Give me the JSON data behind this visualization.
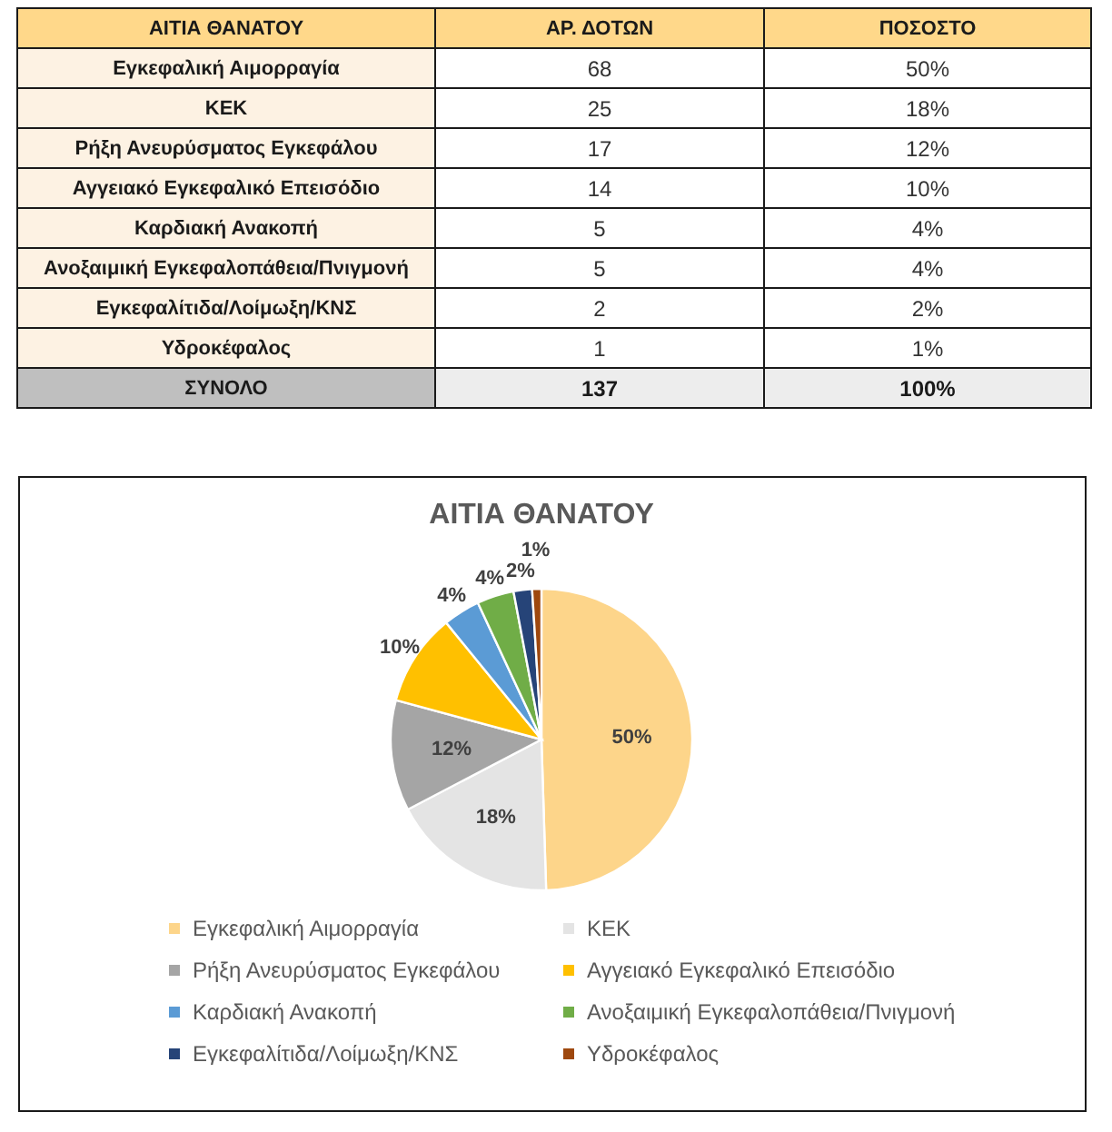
{
  "chart_data": [
    {
      "type": "other",
      "categories": [
        "Εγκεφαλική Αιμορραγία",
        "ΚΕΚ",
        "Ρήξη Ανευρύσματος Εγκεφάλου",
        "Αγγειακό Εγκεφαλικό Επεισόδιο",
        "Καρδιακή Ανακοπή",
        "Ανοξαιμική Εγκεφαλοπάθεια/Πνιγμονή",
        "Εγκεφαλίτιδα/Λοίμωξη/ΚΝΣ",
        "Υδροκέφαλος"
      ],
      "series": [
        {
          "name": "ΑΡ. ΔΟΤΩΝ",
          "values": [
            68,
            25,
            17,
            14,
            5,
            5,
            2,
            1
          ]
        },
        {
          "name": "ΠΟΣΟΣΤΟ",
          "values": [
            50,
            18,
            12,
            10,
            4,
            4,
            2,
            1
          ],
          "value_labels": [
            "50%",
            "18%",
            "12%",
            "10%",
            "4%",
            "4%",
            "2%",
            "1%"
          ]
        }
      ],
      "data_labels": true,
      "totals": [
        "137",
        "100%"
      ],
      "annotations": [
        "ΑΙΤΙΑ ΘΑΝΑΤΟΥ",
        "ΣΥΝΟΛΟ"
      ]
    },
    {
      "type": "pie",
      "title": "ΑΙΤΙΑ ΘΑΝΑΤΟΥ",
      "categories": [
        "Εγκεφαλική Αιμορραγία",
        "ΚΕΚ",
        "Ρήξη Ανευρύσματος Εγκεφάλου",
        "Αγγειακό Εγκεφαλικό Επεισόδιο",
        "Καρδιακή Ανακοπή",
        "Ανοξαιμική Εγκεφαλοπάθεια/Πνιγμονή",
        "Εγκεφαλίτιδα/Λοίμωξη/ΚΝΣ",
        "Υδροκέφαλος"
      ],
      "values": [
        50,
        18,
        12,
        10,
        4,
        4,
        2,
        1
      ],
      "colors": [
        "#fdd58a",
        "#e4e4e4",
        "#a5a5a5",
        "#ffc000",
        "#5b9bd5",
        "#70ad47",
        "#264478",
        "#9e480e"
      ],
      "value_labels": [
        "50%",
        "18%",
        "12%",
        "10%",
        "4%",
        "4%",
        "2%",
        "1%"
      ],
      "legend": "bottom"
    }
  ]
}
